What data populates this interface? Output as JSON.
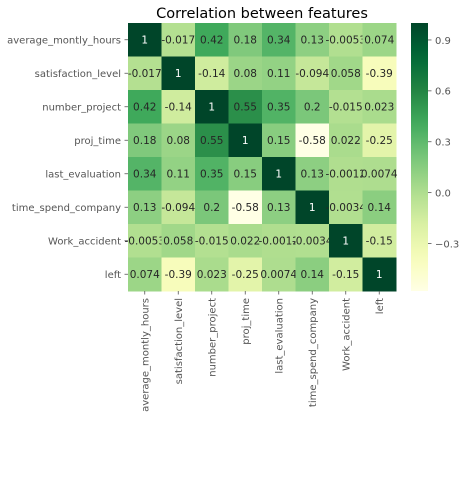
{
  "chart_data": {
    "type": "heatmap",
    "title": "Correlation between features",
    "xlabel": "",
    "ylabel": "",
    "rows": [
      "average_montly_hours",
      "satisfaction_level",
      "number_project",
      "proj_time",
      "last_evaluation",
      "time_spend_company",
      "Work_accident",
      "left"
    ],
    "cols": [
      "average_montly_hours",
      "satisfaction_level",
      "number_project",
      "proj_time",
      "last_evaluation",
      "time_spend_company",
      "Work_accident",
      "left"
    ],
    "values": [
      [
        1,
        -0.017,
        0.42,
        0.18,
        0.34,
        0.13,
        -0.0053,
        0.074
      ],
      [
        -0.017,
        1,
        -0.14,
        0.08,
        0.11,
        -0.094,
        0.058,
        -0.39
      ],
      [
        0.42,
        -0.14,
        1,
        0.55,
        0.35,
        0.2,
        -0.015,
        0.023
      ],
      [
        0.18,
        0.08,
        0.55,
        1,
        0.15,
        -0.58,
        0.022,
        -0.25
      ],
      [
        0.34,
        0.11,
        0.35,
        0.15,
        1,
        0.13,
        -0.0012,
        0.0074
      ],
      [
        0.13,
        -0.094,
        0.2,
        -0.58,
        0.13,
        1,
        -0.0034,
        0.14
      ],
      [
        -0.0053,
        0.058,
        -0.015,
        0.022,
        -0.0012,
        -0.0034,
        1,
        -0.15
      ],
      [
        0.074,
        -0.39,
        0.023,
        -0.25,
        0.0074,
        0.14,
        -0.15,
        1
      ]
    ],
    "annotations": [
      [
        "1",
        "-0.017",
        "0.42",
        "0.18",
        "0.34",
        "0.13",
        "-0.0053",
        "0.074"
      ],
      [
        "-0.017",
        "1",
        "-0.14",
        "0.08",
        "0.11",
        "-0.094",
        "0.058",
        "-0.39"
      ],
      [
        "0.42",
        "-0.14",
        "1",
        "0.55",
        "0.35",
        "0.2",
        "-0.015",
        "0.023"
      ],
      [
        "0.18",
        "0.08",
        "0.55",
        "1",
        "0.15",
        "-0.58",
        "0.022",
        "-0.25"
      ],
      [
        "0.34",
        "0.11",
        "0.35",
        "0.15",
        "1",
        "0.13",
        "-0.0012",
        "0.0074"
      ],
      [
        "0.13",
        "-0.094",
        "0.2",
        "-0.58",
        "0.13",
        "1",
        "-0.0034",
        "0.14"
      ],
      [
        "-0.0053",
        "0.058",
        "-0.015",
        "0.022",
        "-0.0012",
        "-0.0034",
        "1",
        "-0.15"
      ],
      [
        "0.074",
        "-0.39",
        "0.023",
        "-0.25",
        "0.0074",
        "0.14",
        "-0.15",
        "1"
      ]
    ],
    "colormap": "YlGn",
    "color_range": [
      -0.58,
      1
    ],
    "colorbar_ticks": [
      -0.3,
      0.0,
      0.3,
      0.6,
      0.9
    ],
    "colorbar_tick_labels": [
      "−0.3",
      "0.0",
      "0.3",
      "0.6",
      "0.9"
    ],
    "colors": {
      "low": "#ffffe5",
      "high": "#004529",
      "annotation_dark_text": "#262626",
      "annotation_light_text": "#ffffff",
      "tick_text": "#555555",
      "title_text": "#000000"
    }
  }
}
